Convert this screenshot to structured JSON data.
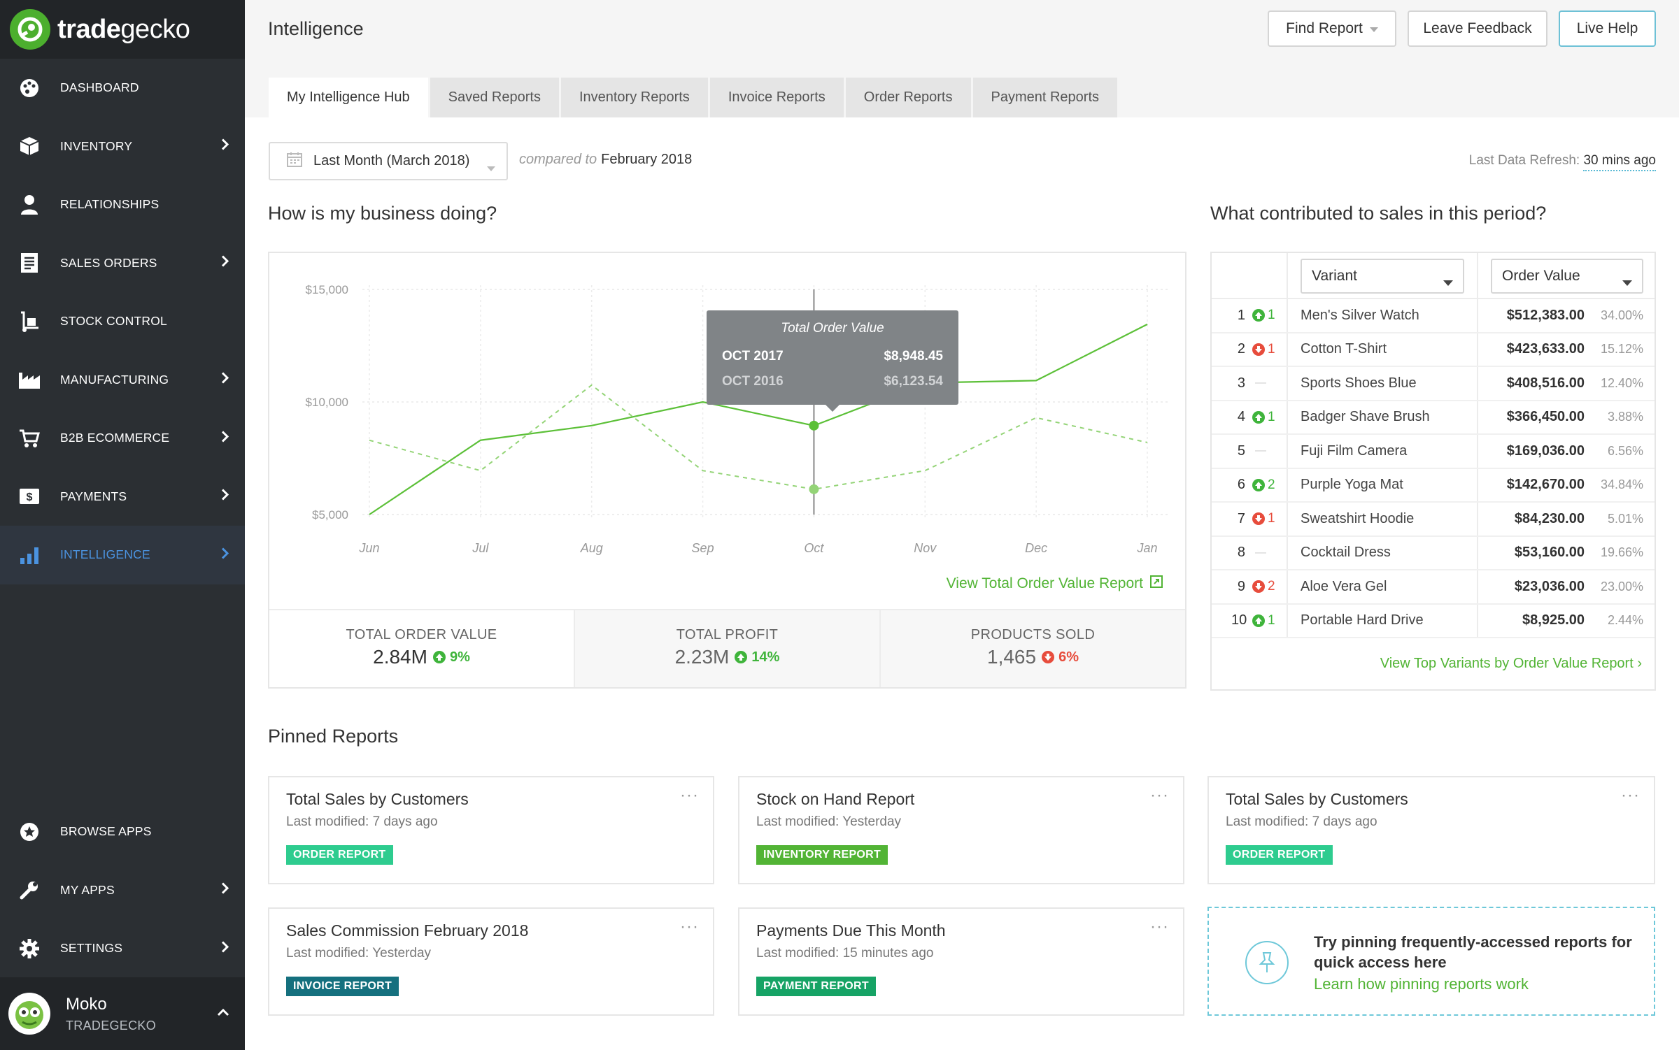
{
  "brand": {
    "name_bold": "trade",
    "name_light": "gecko",
    "accent": "#4caf2e"
  },
  "sidebar": {
    "items": [
      {
        "label": "DASHBOARD",
        "icon": "palette-icon"
      },
      {
        "label": "INVENTORY",
        "icon": "box-icon"
      },
      {
        "label": "RELATIONSHIPS",
        "icon": "person-icon"
      },
      {
        "label": "SALES ORDERS",
        "icon": "document-icon"
      },
      {
        "label": "STOCK CONTROL",
        "icon": "hand-truck-icon"
      },
      {
        "label": "MANUFACTURING",
        "icon": "factory-icon"
      },
      {
        "label": "B2B ECOMMERCE",
        "icon": "cart-icon"
      },
      {
        "label": "PAYMENTS",
        "icon": "dollar-icon"
      },
      {
        "label": "INTELLIGENCE",
        "icon": "bar-chart-icon"
      }
    ],
    "bottom_items": [
      {
        "label": "BROWSE APPS",
        "icon": "star-icon"
      },
      {
        "label": "MY APPS",
        "icon": "wrench-icon"
      },
      {
        "label": "SETTINGS",
        "icon": "gear-icon"
      }
    ],
    "user": {
      "name": "Moko",
      "org": "TRADEGECKO"
    }
  },
  "header": {
    "title": "Intelligence",
    "find_report": "Find Report",
    "leave_feedback": "Leave Feedback",
    "live_help": "Live Help"
  },
  "tabs": [
    "My Intelligence Hub",
    "Saved Reports",
    "Inventory Reports",
    "Invoice Reports",
    "Order Reports",
    "Payment Reports"
  ],
  "filters": {
    "period": "Last Month (March 2018)",
    "compared_to_label": "compared to",
    "compared_to_value": "February 2018",
    "refresh_label": "Last Data Refresh:",
    "refresh_value": "30 mins ago"
  },
  "business": {
    "heading": "How is my business doing?",
    "view_link": "View Total Order Value Report",
    "tooltip": {
      "title": "Total Order Value",
      "row1_label": "OCT 2017",
      "row1_value": "$8,948.45",
      "row2_label": "OCT 2016",
      "row2_value": "$6,123.54"
    },
    "kpis": [
      {
        "label": "TOTAL ORDER VALUE",
        "value": "2.84M",
        "delta": "9%",
        "dir": "up"
      },
      {
        "label": "TOTAL PROFIT",
        "value": "2.23M",
        "delta": "14%",
        "dir": "up"
      },
      {
        "label": "PRODUCTS SOLD",
        "value": "1,465",
        "delta": "6%",
        "dir": "down"
      }
    ]
  },
  "chart_data": {
    "type": "line",
    "categories": [
      "Jun",
      "Jul",
      "Aug",
      "Sep",
      "Oct",
      "Nov",
      "Dec",
      "Jan"
    ],
    "y_ticks": [
      "$15,000",
      "$10,000",
      "$5,000"
    ],
    "ylim": [
      5000,
      15000
    ],
    "grid": true,
    "series": [
      {
        "values": [
          5000,
          8300,
          8950,
          10000,
          8948.45,
          10850,
          10950,
          13450
        ],
        "style": "solid",
        "color": "#5cc038"
      },
      {
        "values": [
          8300,
          6950,
          10750,
          6950,
          6123.54,
          6950,
          9300,
          8200
        ],
        "style": "dashed",
        "color": "#94d477"
      }
    ],
    "highlight_index": 4
  },
  "contrib": {
    "heading": "What contributed to sales in this period?",
    "variant_select": "Variant",
    "value_select": "Order Value",
    "rows": [
      {
        "rank": "1",
        "move": "1",
        "dir": "up",
        "name": "Men's Silver Watch",
        "amount": "$512,383.00",
        "pct": "34.00%"
      },
      {
        "rank": "2",
        "move": "1",
        "dir": "down",
        "name": "Cotton T-Shirt",
        "amount": "$423,633.00",
        "pct": "15.12%"
      },
      {
        "rank": "3",
        "move": "—",
        "dir": "none",
        "name": "Sports Shoes Blue",
        "amount": "$408,516.00",
        "pct": "12.40%"
      },
      {
        "rank": "4",
        "move": "1",
        "dir": "up",
        "name": "Badger Shave Brush",
        "amount": "$366,450.00",
        "pct": "3.88%"
      },
      {
        "rank": "5",
        "move": "—",
        "dir": "none",
        "name": "Fuji Film Camera",
        "amount": "$169,036.00",
        "pct": "6.56%"
      },
      {
        "rank": "6",
        "move": "2",
        "dir": "up",
        "name": "Purple Yoga Mat",
        "amount": "$142,670.00",
        "pct": "34.84%"
      },
      {
        "rank": "7",
        "move": "1",
        "dir": "down",
        "name": "Sweatshirt Hoodie",
        "amount": "$84,230.00",
        "pct": "5.01%"
      },
      {
        "rank": "8",
        "move": "—",
        "dir": "none",
        "name": "Cocktail Dress",
        "amount": "$53,160.00",
        "pct": "19.66%"
      },
      {
        "rank": "9",
        "move": "2",
        "dir": "down",
        "name": "Aloe Vera Gel",
        "amount": "$23,036.00",
        "pct": "23.00%"
      },
      {
        "rank": "10",
        "move": "1",
        "dir": "up",
        "name": "Portable Hard Drive",
        "amount": "$8,925.00",
        "pct": "2.44%"
      }
    ],
    "view_link": "View Top Variants by Order Value Report ›"
  },
  "pinned": {
    "heading": "Pinned Reports",
    "cards": [
      {
        "title": "Total Sales by Customers",
        "modified": "Last modified: 7 days ago",
        "tag": "ORDER REPORT",
        "tag_color": "#2ecc8f"
      },
      {
        "title": "Stock on Hand Report",
        "modified": "Last modified: Yesterday",
        "tag": "INVENTORY REPORT",
        "tag_color": "#52b435"
      },
      {
        "title": "Total Sales by Customers",
        "modified": "Last modified: 7 days ago",
        "tag": "ORDER REPORT",
        "tag_color": "#2ecc8f"
      },
      {
        "title": "Sales Commission February 2018",
        "modified": "Last modified: Yesterday",
        "tag": "INVOICE REPORT",
        "tag_color": "#15707e"
      },
      {
        "title": "Payments Due This Month",
        "modified": "Last modified: 15 minutes ago",
        "tag": "PAYMENT REPORT",
        "tag_color": "#16a365"
      }
    ],
    "tip_text": "Try pinning frequently-accessed reports for quick access here",
    "tip_link": "Learn how pinning reports work"
  }
}
